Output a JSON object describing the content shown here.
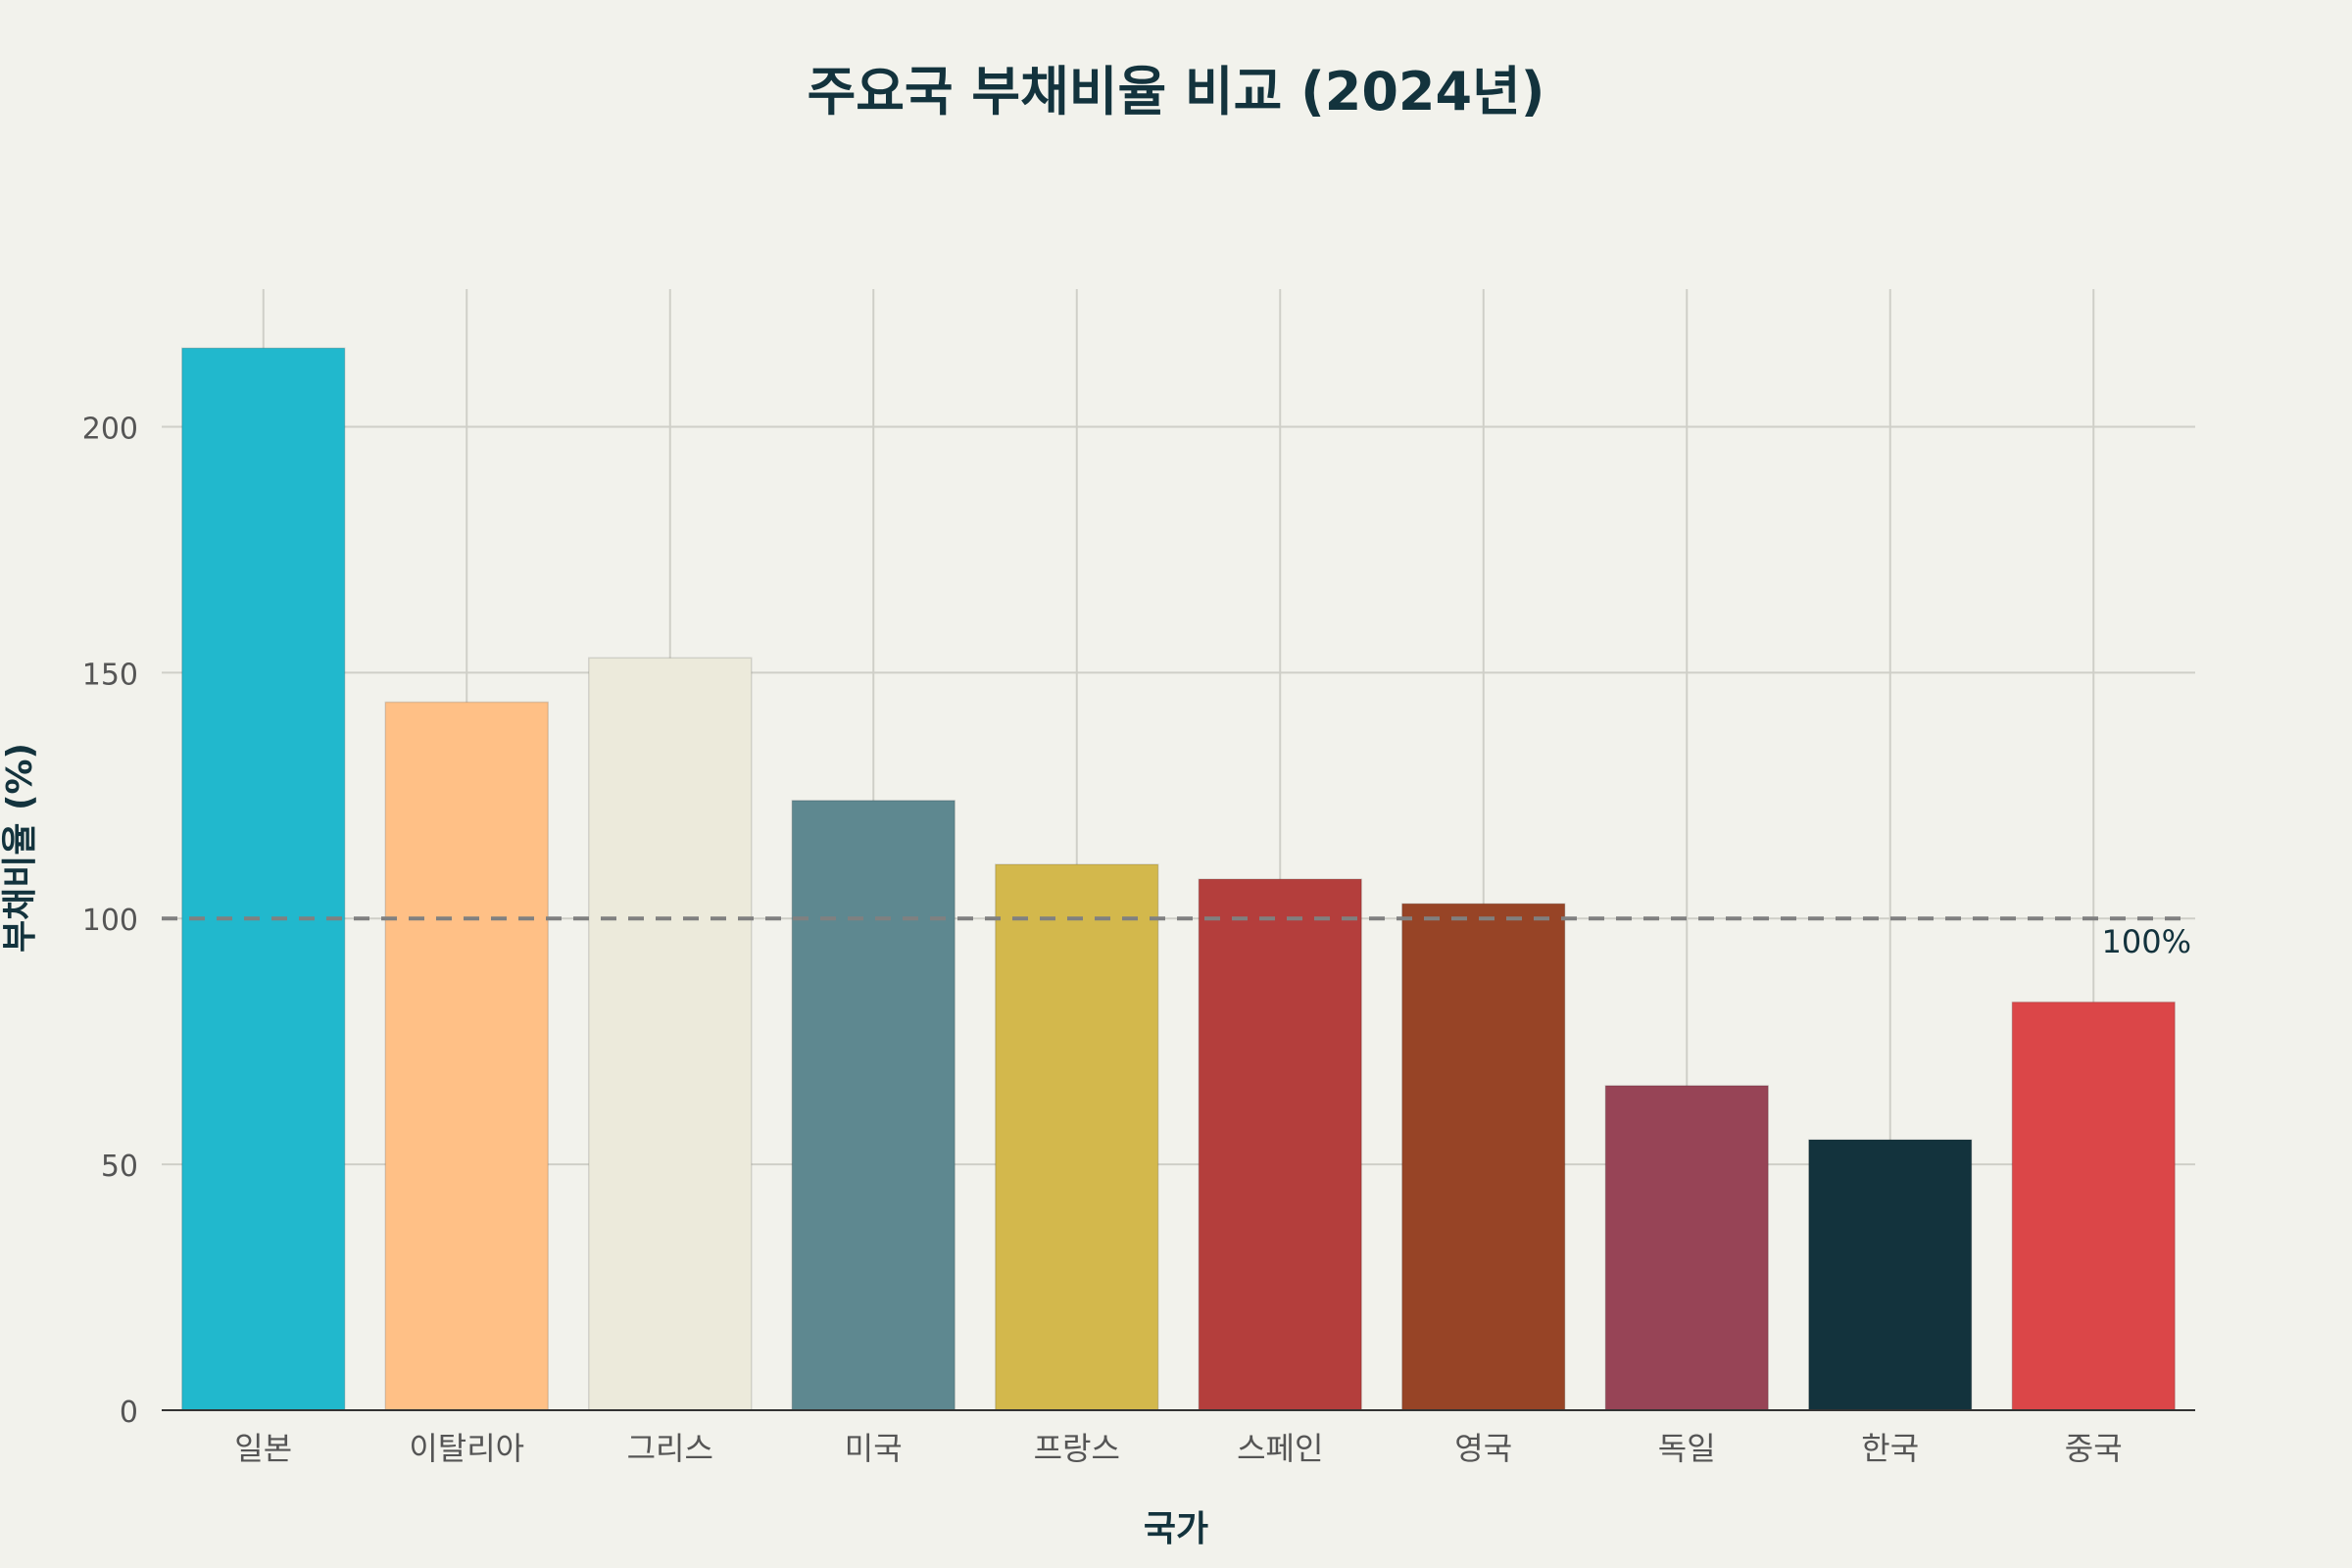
{
  "chart_data": {
    "type": "bar",
    "title": "주요국 부채비율 비교 (2024년)",
    "xlabel": "국가",
    "ylabel": "부채비율 (%)",
    "categories": [
      "일본",
      "이탈리아",
      "그리스",
      "미국",
      "프랑스",
      "스페인",
      "영국",
      "독일",
      "한국",
      "중국"
    ],
    "values": [
      216,
      144,
      153,
      124,
      111,
      108,
      103,
      66,
      55,
      83
    ],
    "colors": [
      "#21b8cd",
      "#ffc086",
      "#eceadb",
      "#5e8890",
      "#d3b84c",
      "#b43e3c",
      "#974426",
      "#974456",
      "#13333d",
      "#db4648"
    ],
    "ylim": [
      0,
      228
    ],
    "yticks": [
      0,
      50,
      100,
      150,
      200
    ],
    "grid": true,
    "reference_line": {
      "value": 100,
      "label": "100%",
      "color": "#808080",
      "style": "dashed"
    }
  }
}
